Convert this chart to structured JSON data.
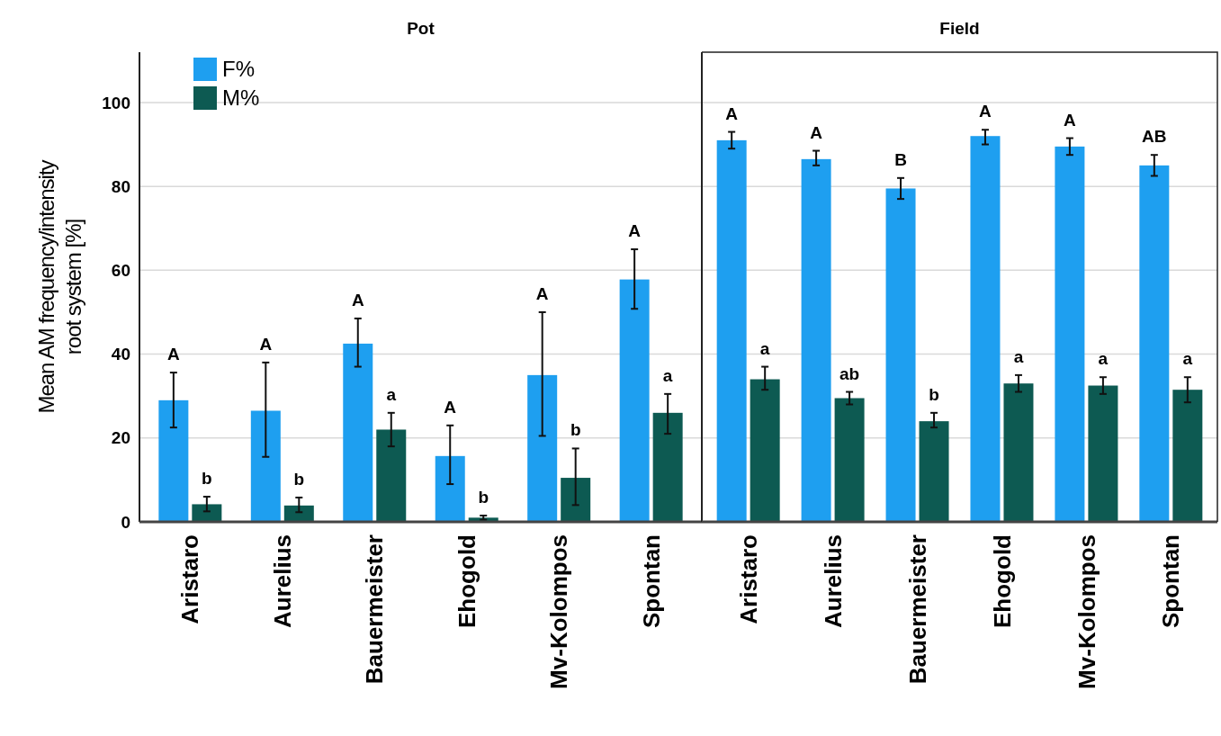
{
  "chart_data": [
    {
      "type": "bar",
      "title": "Pot",
      "ylabel": "Mean AM frequency/intensity\nroot system [%]",
      "categories": [
        "Aristaro",
        "Aurelius",
        "Bauermeister",
        "Ehogold",
        "Mv-Kolompos",
        "Spontan"
      ],
      "ylim": [
        0,
        112
      ],
      "yticks": [
        0,
        20,
        40,
        60,
        80,
        100
      ],
      "grid": "y",
      "legend": "top left",
      "series": [
        {
          "name": "F%",
          "color": "#1e9ff0",
          "values": [
            29,
            26.5,
            42.5,
            15.7,
            35,
            57.8
          ],
          "errors": [
            [
              22.5,
              35.6
            ],
            [
              15.5,
              38
            ],
            [
              37,
              48.5
            ],
            [
              9,
              23
            ],
            [
              20.5,
              50
            ],
            [
              50.8,
              65
            ]
          ]
        },
        {
          "name": "M%",
          "color": "#0d5a52",
          "values": [
            4.2,
            3.9,
            22,
            1,
            10.5,
            26
          ],
          "errors": [
            [
              2.5,
              6
            ],
            [
              2.3,
              5.8
            ],
            [
              18,
              26
            ],
            [
              0.5,
              1.5
            ],
            [
              4,
              17.5
            ],
            [
              21,
              30.5
            ]
          ]
        }
      ],
      "annotations": [
        "A",
        "b",
        "A",
        "b",
        "A",
        "a",
        "A",
        "b",
        "A",
        "b",
        "A",
        "a"
      ]
    },
    {
      "type": "bar",
      "title": "Field",
      "categories": [
        "Aristaro",
        "Aurelius",
        "Bauermeister",
        "Ehogold",
        "Mv-Kolompos",
        "Spontan"
      ],
      "ylim": [
        0,
        112
      ],
      "yticks": [
        0,
        20,
        40,
        60,
        80,
        100
      ],
      "grid": "y",
      "tick_labels": "x",
      "series": [
        {
          "color": "#1e9ff0",
          "values": [
            91,
            86.5,
            79.5,
            92,
            89.5,
            85
          ],
          "errors": [
            [
              89,
              93
            ],
            [
              85,
              88.5
            ],
            [
              77,
              82
            ],
            [
              90,
              93.5
            ],
            [
              87.5,
              91.5
            ],
            [
              82.5,
              87.5
            ]
          ]
        },
        {
          "color": "#0d5a52",
          "values": [
            34,
            29.5,
            24,
            33,
            32.5,
            31.5
          ],
          "errors": [
            [
              31.5,
              37
            ],
            [
              28,
              31
            ],
            [
              22.5,
              26
            ],
            [
              31,
              35
            ],
            [
              30.5,
              34.5
            ],
            [
              28.5,
              34.5
            ]
          ]
        }
      ],
      "annotations": [
        "A",
        "a",
        "A",
        "ab",
        "B",
        "b",
        "A",
        "a",
        "A",
        "a",
        "AB",
        "a"
      ]
    }
  ]
}
